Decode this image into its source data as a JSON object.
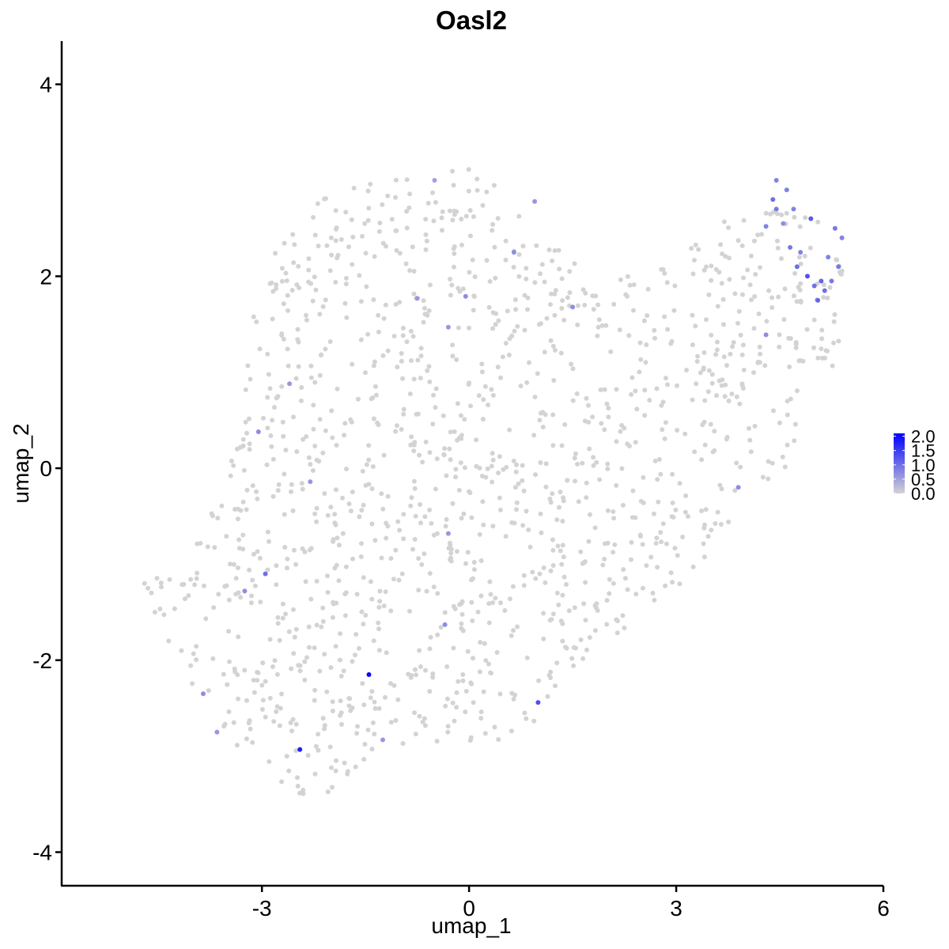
{
  "chart_data": {
    "type": "scatter",
    "title": "Oasl2",
    "xlabel": "umap_1",
    "ylabel": "umap_2",
    "xlim": [
      -5.9,
      6.0
    ],
    "ylim": [
      -4.35,
      4.45
    ],
    "x_ticks": [
      -3,
      0,
      3,
      6
    ],
    "x_tick_labels": [
      "-3",
      "0",
      "3",
      "6"
    ],
    "y_ticks": [
      -4,
      -2,
      0,
      2,
      4
    ],
    "y_tick_labels": [
      "-4",
      "-2",
      "0",
      "2",
      "4"
    ],
    "grid": false,
    "legend": {
      "position": "right",
      "type": "colorbar",
      "range": [
        0,
        2.1
      ],
      "ticks": [
        0.0,
        0.5,
        1.0,
        1.5,
        2.0
      ],
      "tick_labels": [
        "0.0",
        "0.5",
        "1.0",
        "1.5",
        "2.0"
      ]
    },
    "colors": {
      "low": "#d3d3d3",
      "high": "#0000ff"
    },
    "background_points_estimated": 1400,
    "highlighted_points": [
      {
        "x": -1.45,
        "y": -2.15,
        "value": 2.0
      },
      {
        "x": -2.45,
        "y": -2.93,
        "value": 1.8
      },
      {
        "x": 1.0,
        "y": -2.44,
        "value": 1.3
      },
      {
        "x": -2.95,
        "y": -1.1,
        "value": 1.0
      },
      {
        "x": -3.25,
        "y": -1.28,
        "value": 0.7
      },
      {
        "x": -3.85,
        "y": -2.35,
        "value": 0.7
      },
      {
        "x": -3.65,
        "y": -2.75,
        "value": 0.6
      },
      {
        "x": -1.25,
        "y": -2.83,
        "value": 0.6
      },
      {
        "x": -0.35,
        "y": -1.63,
        "value": 0.7
      },
      {
        "x": -0.3,
        "y": -0.68,
        "value": 0.6
      },
      {
        "x": -2.3,
        "y": -0.14,
        "value": 0.6
      },
      {
        "x": -3.05,
        "y": 0.38,
        "value": 0.7
      },
      {
        "x": -2.6,
        "y": 0.88,
        "value": 0.6
      },
      {
        "x": -0.75,
        "y": 1.77,
        "value": 0.6
      },
      {
        "x": -0.3,
        "y": 1.47,
        "value": 0.6
      },
      {
        "x": -0.05,
        "y": 1.79,
        "value": 0.7
      },
      {
        "x": -0.5,
        "y": 3.0,
        "value": 0.5
      },
      {
        "x": 0.65,
        "y": 2.25,
        "value": 0.7
      },
      {
        "x": 0.95,
        "y": 2.78,
        "value": 0.6
      },
      {
        "x": 1.5,
        "y": 1.68,
        "value": 0.7
      },
      {
        "x": 3.9,
        "y": -0.2,
        "value": 0.7
      },
      {
        "x": 4.3,
        "y": 1.39,
        "value": 0.7
      },
      {
        "x": 4.3,
        "y": 2.52,
        "value": 0.8
      },
      {
        "x": 4.4,
        "y": 2.8,
        "value": 1.0
      },
      {
        "x": 4.45,
        "y": 3.0,
        "value": 0.8
      },
      {
        "x": 4.45,
        "y": 2.7,
        "value": 0.9
      },
      {
        "x": 4.55,
        "y": 2.55,
        "value": 0.7
      },
      {
        "x": 4.6,
        "y": 2.9,
        "value": 0.8
      },
      {
        "x": 4.65,
        "y": 2.3,
        "value": 0.9
      },
      {
        "x": 4.7,
        "y": 2.7,
        "value": 0.8
      },
      {
        "x": 4.75,
        "y": 2.1,
        "value": 1.0
      },
      {
        "x": 4.8,
        "y": 2.25,
        "value": 0.8
      },
      {
        "x": 4.9,
        "y": 2.0,
        "value": 1.3
      },
      {
        "x": 4.95,
        "y": 2.6,
        "value": 1.2
      },
      {
        "x": 5.0,
        "y": 1.9,
        "value": 1.0
      },
      {
        "x": 5.05,
        "y": 1.75,
        "value": 1.1
      },
      {
        "x": 5.1,
        "y": 1.95,
        "value": 1.1
      },
      {
        "x": 5.15,
        "y": 1.85,
        "value": 1.0
      },
      {
        "x": 5.2,
        "y": 2.2,
        "value": 0.8
      },
      {
        "x": 5.25,
        "y": 1.95,
        "value": 0.9
      },
      {
        "x": 5.3,
        "y": 2.5,
        "value": 0.9
      },
      {
        "x": 5.35,
        "y": 2.1,
        "value": 0.9
      },
      {
        "x": 5.4,
        "y": 2.4,
        "value": 0.8
      }
    ]
  }
}
